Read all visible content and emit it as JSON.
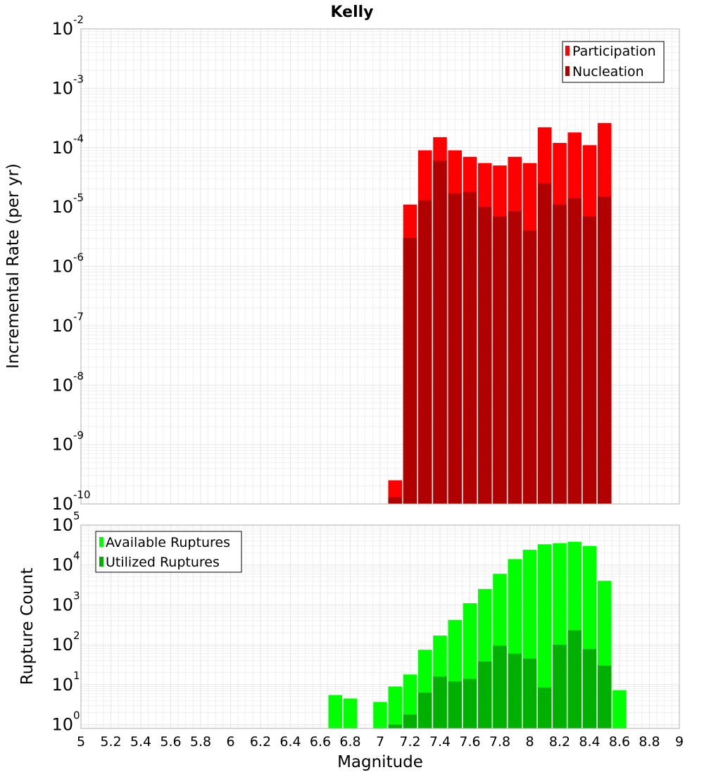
{
  "title": "Kelly",
  "x_axis": {
    "label": "Magnitude",
    "range": [
      5,
      9
    ],
    "ticks": [
      5,
      5.2,
      5.4,
      5.6,
      5.8,
      6,
      6.2,
      6.4,
      6.6,
      6.8,
      7,
      7.2,
      7.4,
      7.6,
      7.8,
      8,
      8.2,
      8.4,
      8.6,
      8.8,
      9
    ],
    "tick_labels": [
      "5",
      "5.2",
      "5.4",
      "5.6",
      "5.8",
      "6",
      "6.2",
      "6.4",
      "6.6",
      "6.8",
      "7",
      "7.2",
      "7.4",
      "7.6",
      "7.8",
      "8",
      "8.2",
      "8.4",
      "8.6",
      "8.8",
      "9"
    ]
  },
  "colors": {
    "participation": "#ff0000",
    "nucleation": "#b00000",
    "available": "#00ff00",
    "utilized": "#00b000",
    "grid": "#e6e6e6",
    "frame": "#b0b0b0"
  },
  "chart_data": [
    {
      "type": "bar",
      "title": "Kelly",
      "xlabel": "Magnitude",
      "ylabel": "Incremental Rate (per yr)",
      "yscale": "log",
      "ylim": [
        1e-10,
        0.01
      ],
      "y_tick_exponents": [
        -10,
        -9,
        -8,
        -7,
        -6,
        -5,
        -4,
        -3,
        -2
      ],
      "legend": "top-right",
      "x": [
        7.1,
        7.2,
        7.3,
        7.4,
        7.5,
        7.6,
        7.7,
        7.8,
        7.9,
        8.0,
        8.1,
        8.2,
        8.3,
        8.4,
        8.5,
        8.6
      ],
      "series": [
        {
          "name": "Participation",
          "color": "#ff0000",
          "values": [
            2.5e-10,
            1.1e-05,
            9e-05,
            0.00015,
            9e-05,
            7e-05,
            5.5e-05,
            5e-05,
            7e-05,
            5.5e-05,
            0.00022,
            0.00012,
            0.00018,
            0.00011,
            0.00026,
            null
          ]
        },
        {
          "name": "Nucleation",
          "color": "#b00000",
          "values": [
            1.3e-10,
            3e-06,
            1.3e-05,
            6e-05,
            1.7e-05,
            1.8e-05,
            1e-05,
            7e-06,
            8.5e-06,
            4e-06,
            2.5e-05,
            1.1e-05,
            1.4e-05,
            7e-06,
            1.5e-05,
            null
          ]
        }
      ]
    },
    {
      "type": "bar",
      "xlabel": "Magnitude",
      "ylabel": "Rupture Count",
      "yscale": "log",
      "ylim": [
        0.8,
        100000.0
      ],
      "y_tick_exponents": [
        0,
        1,
        2,
        3,
        4,
        5
      ],
      "legend": "top-left",
      "x": [
        6.7,
        6.8,
        6.9,
        7.0,
        7.1,
        7.2,
        7.3,
        7.4,
        7.5,
        7.6,
        7.7,
        7.8,
        7.9,
        8.0,
        8.1,
        8.2,
        8.3,
        8.4,
        8.5,
        8.6
      ],
      "series": [
        {
          "name": "Available Ruptures",
          "color": "#00ff00",
          "values": [
            5.5,
            4.5,
            null,
            3.7,
            9,
            18,
            75,
            170,
            420,
            1100,
            2500,
            6000,
            14000,
            24000,
            33000,
            35000,
            38000,
            30000,
            4000,
            7.3
          ]
        },
        {
          "name": "Utilized Ruptures",
          "color": "#00b000",
          "values": [
            null,
            null,
            null,
            null,
            1,
            1.8,
            6.3,
            16,
            12,
            14,
            38,
            95,
            60,
            45,
            8.5,
            100,
            230,
            78,
            30,
            null
          ]
        }
      ]
    }
  ]
}
